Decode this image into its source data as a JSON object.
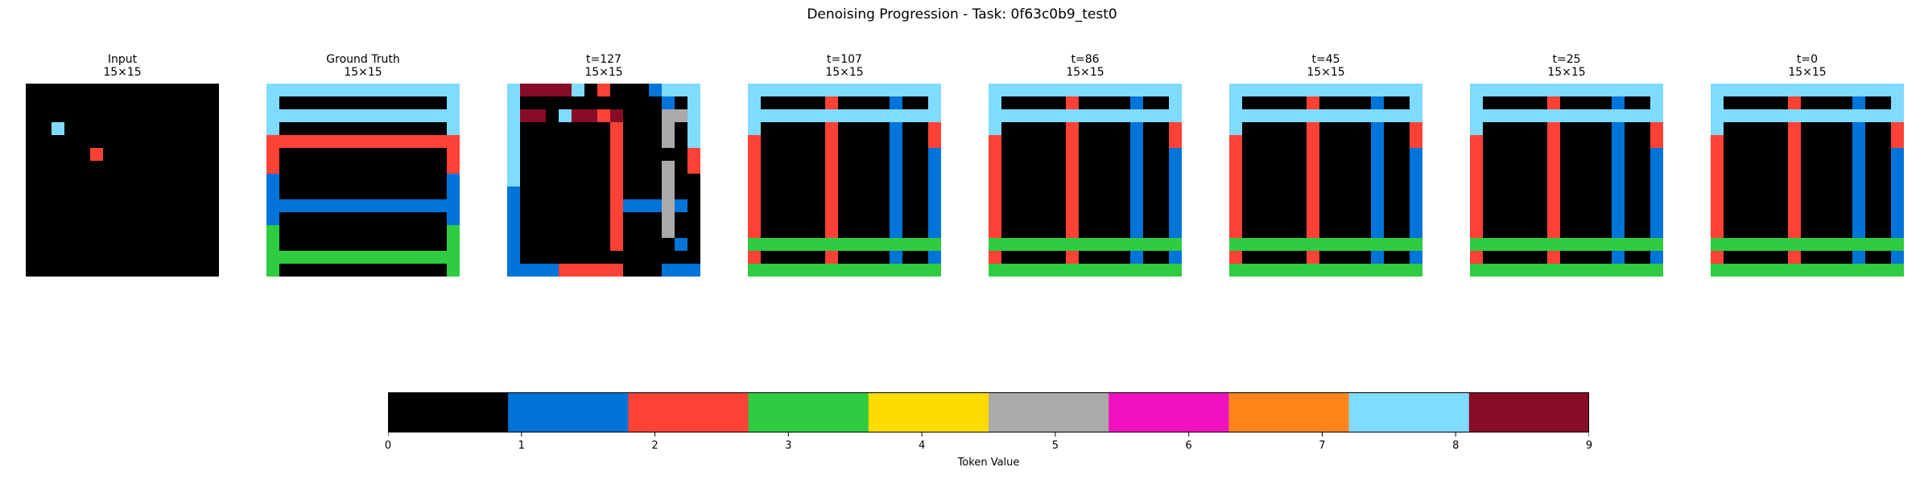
{
  "title": "Denoising Progression - Task: 0f63c0b9_test0",
  "palette": [
    "#000000",
    "#0074D9",
    "#FF4136",
    "#2ECC40",
    "#FFDC00",
    "#AAAAAA",
    "#F012BE",
    "#FF851B",
    "#7FDBFF",
    "#870C25"
  ],
  "chart_data": {
    "type": "heatmap",
    "panels": [
      {
        "title": "Input",
        "size": "15×15",
        "grid": [
          "000000000000000",
          "000000000000000",
          "000000000000000",
          "008000000000000",
          "000000000000000",
          "000002000000000",
          "000000000000000",
          "000000000000000",
          "000000000000000",
          "000000000000000",
          "000000000000000",
          "000000000000000",
          "000000000000000",
          "000000000000000",
          "000000000000000"
        ]
      },
      {
        "title": "Ground Truth",
        "size": "15×15",
        "grid": [
          "888888888888888",
          "800000000000008",
          "888888888888888",
          "800000000000008",
          "222222222222222",
          "200000000000002",
          "200000000000002",
          "100000000000001",
          "100000000000001",
          "111111111111111",
          "100000000000001",
          "300000000000003",
          "300000000000003",
          "333333333333333",
          "300000000000003"
        ]
      },
      {
        "title": "t=127",
        "size": "15×15",
        "grid": [
          "899998020001888",
          "800000000000108",
          "899089929000558",
          "800000002000508",
          "800000002000508",
          "800000002000002",
          "800000002000502",
          "800000002000500",
          "100000002000500",
          "100000002111510",
          "100000002000500",
          "100000002000500",
          "100000002000010",
          "100000000000000",
          "111122222000111"
        ]
      },
      {
        "title": "t=107",
        "size": "15×15",
        "grid": [
          "888888888888888",
          "800000200001008",
          "888888888888888",
          "800000200001002",
          "200000200001002",
          "200000200001001",
          "200000200001001",
          "200000200001001",
          "200000200001001",
          "200000200001001",
          "200000200001001",
          "200000200001001",
          "333333333333333",
          "200000200001001",
          "333333333333333"
        ]
      },
      {
        "title": "t=86",
        "size": "15×15",
        "grid": [
          "888888888888888",
          "800000200001008",
          "888888888888888",
          "800000200001002",
          "200000200001002",
          "200000200001001",
          "200000200001001",
          "200000200001001",
          "200000200001001",
          "200000200001001",
          "200000200001001",
          "200000200001001",
          "333333333333333",
          "200000200001001",
          "333333333333333"
        ]
      },
      {
        "title": "t=45",
        "size": "15×15",
        "grid": [
          "888888888888888",
          "800000200001008",
          "888888888888888",
          "800000200001002",
          "200000200001002",
          "200000200001001",
          "200000200001001",
          "200000200001001",
          "200000200001001",
          "200000200001001",
          "200000200001001",
          "200000200001001",
          "333333333333333",
          "200000200001001",
          "333333333333333"
        ]
      },
      {
        "title": "t=25",
        "size": "15×15",
        "grid": [
          "888888888888888",
          "800000200001008",
          "888888888888888",
          "800000200001002",
          "200000200001002",
          "200000200001001",
          "200000200001001",
          "200000200001001",
          "200000200001001",
          "200000200001001",
          "200000200001001",
          "200000200001001",
          "333333333333333",
          "200000200001001",
          "333333333333333"
        ]
      },
      {
        "title": "t=0",
        "size": "15×15",
        "grid": [
          "888888888888888",
          "800000200001008",
          "888888888888888",
          "800000200001002",
          "200000200001002",
          "200000200001001",
          "200000200001001",
          "200000200001001",
          "200000200001001",
          "200000200001001",
          "200000200001001",
          "200000200001001",
          "333333333333333",
          "200000200001001",
          "333333333333333"
        ]
      }
    ],
    "colorbar": {
      "label": "Token Value",
      "vmin": 0,
      "vmax": 9,
      "ticks": [
        "0",
        "1",
        "2",
        "3",
        "4",
        "5",
        "6",
        "7",
        "8",
        "9"
      ]
    }
  }
}
